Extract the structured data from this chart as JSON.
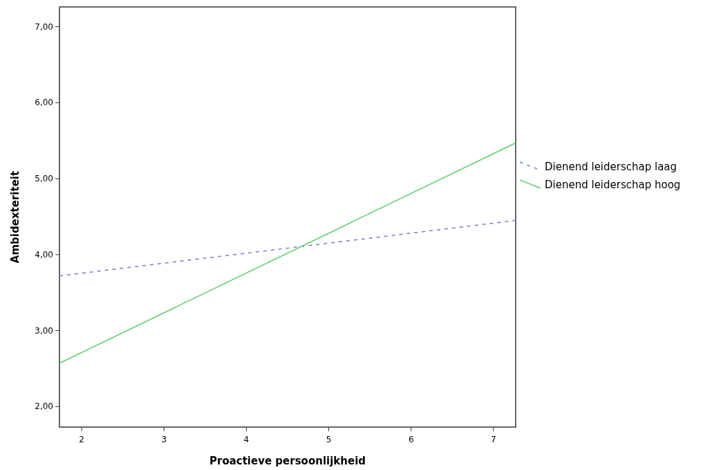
{
  "chart_data": {
    "type": "line",
    "xlabel": "Proactieve persoonlijkheid",
    "ylabel": "Ambidexteriteit",
    "xlim": [
      1.73,
      7.27
    ],
    "xticks": [
      2,
      3,
      4,
      5,
      6,
      7
    ],
    "ylim": [
      1.73,
      7.26
    ],
    "yticks": [
      {
        "value": 2,
        "label": "2,00"
      },
      {
        "value": 3,
        "label": "3,00"
      },
      {
        "value": 4,
        "label": "4,00"
      },
      {
        "value": 5,
        "label": "5,00"
      },
      {
        "value": 6,
        "label": "6,00"
      },
      {
        "value": 7,
        "label": "7,00"
      }
    ],
    "x": [
      1.73,
      7.27
    ],
    "grid": false,
    "legend": "right",
    "marker": "none",
    "series": [
      {
        "name": "Dienend leiderschap laag",
        "color": "#6b7fd4",
        "line_style": "dashed",
        "values": [
          3.72,
          4.45
        ]
      },
      {
        "name": "Dienend leiderschap hoog",
        "color": "#5ccc6a",
        "line_style": "solid",
        "values": [
          2.57,
          5.47
        ]
      }
    ]
  }
}
